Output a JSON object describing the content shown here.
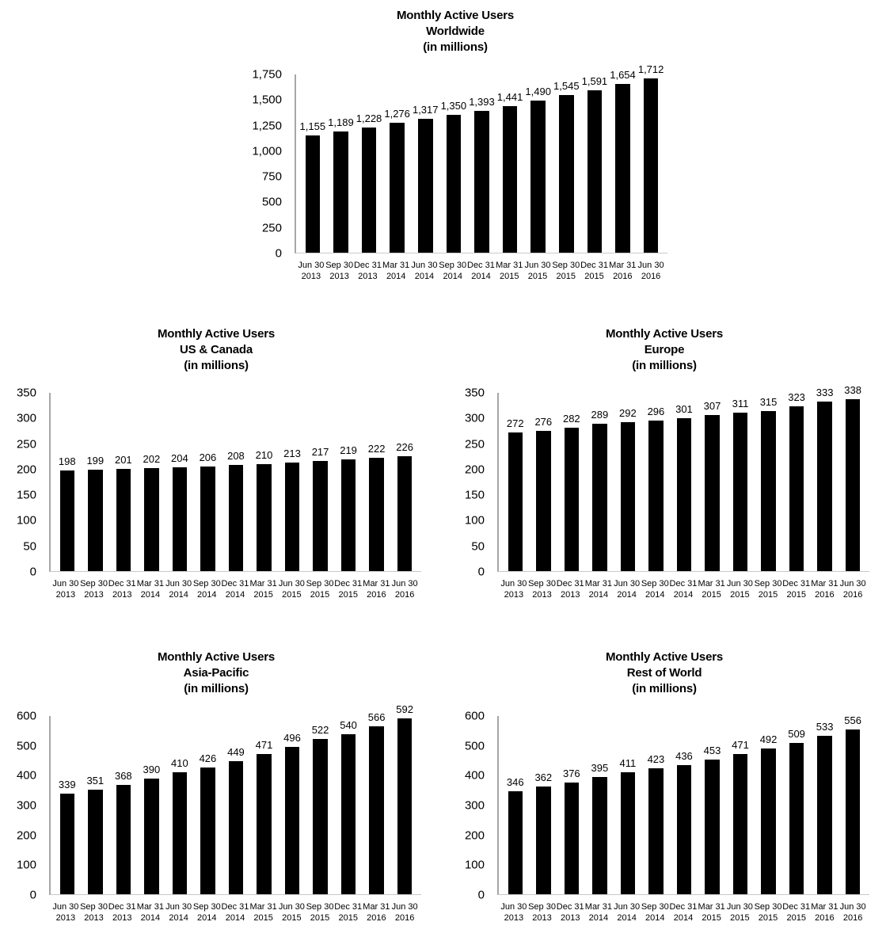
{
  "page": {
    "background": "#ffffff",
    "bar_color": "#000000",
    "axis_line_color": "#a6a6a6"
  },
  "chart_data": [
    {
      "id": "worldwide",
      "type": "bar",
      "title": "Monthly Active Users",
      "region": "Worldwide",
      "unit": "(in millions)",
      "xlabel": "",
      "ylabel": "",
      "grid": false,
      "legend": false,
      "ylim": [
        0,
        1750
      ],
      "ytick_values": [
        1750,
        1500,
        1250,
        1000,
        750,
        500,
        250,
        0
      ],
      "ytick_labels": [
        "1,750",
        "1,500",
        "1,250",
        "1,000",
        "750",
        "500",
        "250",
        "0"
      ],
      "categories": [
        "Jun 30 2013",
        "Sep 30 2013",
        "Dec 31 2013",
        "Mar 31 2014",
        "Jun 30 2014",
        "Sep 30 2014",
        "Dec 31 2014",
        "Mar 31 2015",
        "Jun 30 2015",
        "Sep 30 2015",
        "Dec 31 2015",
        "Mar 31 2016",
        "Jun 30 2016"
      ],
      "values": [
        1155,
        1189,
        1228,
        1276,
        1317,
        1350,
        1393,
        1441,
        1490,
        1545,
        1591,
        1654,
        1712
      ],
      "labels": [
        "1,155",
        "1,189",
        "1,228",
        "1,276",
        "1,317",
        "1,350",
        "1,393",
        "1,441",
        "1,490",
        "1,545",
        "1,591",
        "1,654",
        "1,712"
      ]
    },
    {
      "id": "us-canada",
      "type": "bar",
      "title": "Monthly Active Users",
      "region": "US & Canada",
      "unit": "(in millions)",
      "xlabel": "",
      "ylabel": "",
      "grid": false,
      "legend": false,
      "ylim": [
        0,
        350
      ],
      "ytick_values": [
        350,
        300,
        250,
        200,
        150,
        100,
        50,
        0
      ],
      "ytick_labels": [
        "350",
        "300",
        "250",
        "200",
        "150",
        "100",
        "50",
        "0"
      ],
      "categories": [
        "Jun 30 2013",
        "Sep 30 2013",
        "Dec 31 2013",
        "Mar 31 2014",
        "Jun 30 2014",
        "Sep 30 2014",
        "Dec 31 2014",
        "Mar 31 2015",
        "Jun 30 2015",
        "Sep 30 2015",
        "Dec 31 2015",
        "Mar 31 2016",
        "Jun 30 2016"
      ],
      "values": [
        198,
        199,
        201,
        202,
        204,
        206,
        208,
        210,
        213,
        217,
        219,
        222,
        226
      ],
      "labels": [
        "198",
        "199",
        "201",
        "202",
        "204",
        "206",
        "208",
        "210",
        "213",
        "217",
        "219",
        "222",
        "226"
      ]
    },
    {
      "id": "europe",
      "type": "bar",
      "title": "Monthly Active Users",
      "region": "Europe",
      "unit": "(in millions)",
      "xlabel": "",
      "ylabel": "",
      "grid": false,
      "legend": false,
      "ylim": [
        0,
        350
      ],
      "ytick_values": [
        350,
        300,
        250,
        200,
        150,
        100,
        50,
        0
      ],
      "ytick_labels": [
        "350",
        "300",
        "250",
        "200",
        "150",
        "100",
        "50",
        "0"
      ],
      "categories": [
        "Jun 30 2013",
        "Sep 30 2013",
        "Dec 31 2013",
        "Mar 31 2014",
        "Jun 30 2014",
        "Sep 30 2014",
        "Dec 31 2014",
        "Mar 31 2015",
        "Jun 30 2015",
        "Sep 30 2015",
        "Dec 31 2015",
        "Mar 31 2016",
        "Jun 30 2016"
      ],
      "values": [
        272,
        276,
        282,
        289,
        292,
        296,
        301,
        307,
        311,
        315,
        323,
        333,
        338
      ],
      "labels": [
        "272",
        "276",
        "282",
        "289",
        "292",
        "296",
        "301",
        "307",
        "311",
        "315",
        "323",
        "333",
        "338"
      ]
    },
    {
      "id": "asia-pacific",
      "type": "bar",
      "title": "Monthly Active Users",
      "region": "Asia-Pacific",
      "unit": "(in millions)",
      "xlabel": "",
      "ylabel": "",
      "grid": false,
      "legend": false,
      "ylim": [
        0,
        600
      ],
      "ytick_values": [
        600,
        500,
        400,
        300,
        200,
        100,
        0
      ],
      "ytick_labels": [
        "600",
        "500",
        "400",
        "300",
        "200",
        "100",
        "0"
      ],
      "categories": [
        "Jun 30 2013",
        "Sep 30 2013",
        "Dec 31 2013",
        "Mar 31 2014",
        "Jun 30 2014",
        "Sep 30 2014",
        "Dec 31 2014",
        "Mar 31 2015",
        "Jun 30 2015",
        "Sep 30 2015",
        "Dec 31 2015",
        "Mar 31 2016",
        "Jun 30 2016"
      ],
      "values": [
        339,
        351,
        368,
        390,
        410,
        426,
        449,
        471,
        496,
        522,
        540,
        566,
        592
      ],
      "labels": [
        "339",
        "351",
        "368",
        "390",
        "410",
        "426",
        "449",
        "471",
        "496",
        "522",
        "540",
        "566",
        "592"
      ]
    },
    {
      "id": "rest-of-world",
      "type": "bar",
      "title": "Monthly Active Users",
      "region": "Rest of World",
      "unit": "(in millions)",
      "xlabel": "",
      "ylabel": "",
      "grid": false,
      "legend": false,
      "ylim": [
        0,
        600
      ],
      "ytick_values": [
        600,
        500,
        400,
        300,
        200,
        100,
        0
      ],
      "ytick_labels": [
        "600",
        "500",
        "400",
        "300",
        "200",
        "100",
        "0"
      ],
      "categories": [
        "Jun 30 2013",
        "Sep 30 2013",
        "Dec 31 2013",
        "Mar 31 2014",
        "Jun 30 2014",
        "Sep 30 2014",
        "Dec 31 2014",
        "Mar 31 2015",
        "Jun 30 2015",
        "Sep 30 2015",
        "Dec 31 2015",
        "Mar 31 2016",
        "Jun 30 2016"
      ],
      "values": [
        346,
        362,
        376,
        395,
        411,
        423,
        436,
        453,
        471,
        492,
        509,
        533,
        556
      ],
      "labels": [
        "346",
        "362",
        "376",
        "395",
        "411",
        "423",
        "436",
        "453",
        "471",
        "492",
        "509",
        "533",
        "556"
      ]
    }
  ]
}
